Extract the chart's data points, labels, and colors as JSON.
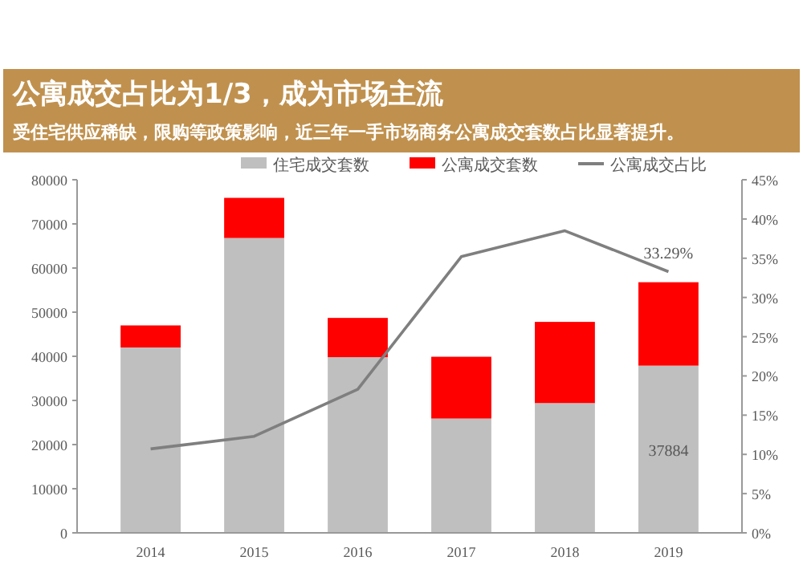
{
  "chart_data": {
    "type": "bar",
    "title": "公寓成交占比为1/3，成为市场主流",
    "subtitle": "受住宅供应稀缺，限购等政策影响，近三年一手市场商务公寓成交套数占比显著提升。",
    "categories": [
      "2014",
      "2015",
      "2016",
      "2017",
      "2018",
      "2019"
    ],
    "stacked": true,
    "legend": "top",
    "grid": false,
    "marker": "none",
    "series": [
      {
        "name": "住宅成交套数",
        "color": "#bfbfbf",
        "values": [
          42000,
          66800,
          39800,
          25900,
          29400,
          37884
        ],
        "value_labels": [
          null,
          null,
          null,
          null,
          null,
          "37884"
        ]
      },
      {
        "name": "公寓成交套数",
        "color": "#ff0000",
        "values": [
          5000,
          9100,
          8900,
          14000,
          18400,
          18900
        ]
      },
      {
        "name": "公寓成交占比",
        "type": "line",
        "axis": "y2",
        "color": "#7f7f7f",
        "values": [
          10.7,
          12.3,
          18.3,
          35.2,
          38.5,
          33.29
        ],
        "value_labels": [
          null,
          null,
          null,
          null,
          null,
          "33.29%"
        ]
      }
    ],
    "ylim": [
      0,
      80000
    ],
    "yticks": [
      0,
      10000,
      20000,
      30000,
      40000,
      50000,
      60000,
      70000,
      80000
    ],
    "y2lim": [
      0,
      45
    ],
    "y2ticks": [
      {
        "value": 0,
        "label": "0%"
      },
      {
        "value": 5,
        "label": "5%"
      },
      {
        "value": 10,
        "label": "10%"
      },
      {
        "value": 15,
        "label": "15%"
      },
      {
        "value": 20,
        "label": "20%"
      },
      {
        "value": 25,
        "label": "25%"
      },
      {
        "value": 30,
        "label": "30%"
      },
      {
        "value": 35,
        "label": "35%"
      },
      {
        "value": 40,
        "label": "40%"
      },
      {
        "value": 45,
        "label": "45%"
      }
    ]
  }
}
